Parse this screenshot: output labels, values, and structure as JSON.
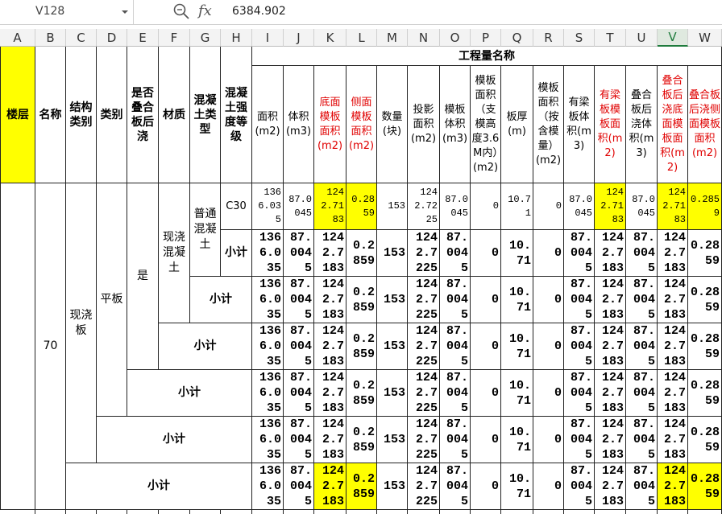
{
  "formula_bar": {
    "name_box": "V128",
    "fx": "fx",
    "formula": "6384.902"
  },
  "column_letters": [
    "A",
    "B",
    "C",
    "D",
    "E",
    "F",
    "G",
    "H",
    "I",
    "J",
    "K",
    "L",
    "M",
    "N",
    "O",
    "P",
    "Q",
    "R",
    "S",
    "T",
    "U",
    "V",
    "W"
  ],
  "table": {
    "header": {
      "left": [
        "楼层",
        "名称",
        "结构类别",
        "类别",
        "是否叠合板后浇",
        "材质",
        "混凝土类型",
        "混凝土强度等级"
      ],
      "title": "工程量名称",
      "measures": [
        "面积(m2)",
        "体积(m3)",
        "底面模板面积(m2)",
        "侧面模板面积(m2)",
        "数量(块)",
        "投影面积(m2)",
        "模板体积(m3)",
        "模板面积（支模高度3.6M内）(m2)",
        "板厚(m)",
        "模板面积（按含模量）(m2)",
        "有梁板体积(m3)",
        "有梁板模板面积(m2)",
        "叠合板后浇体积(m3)",
        "叠合板后浇底面模板面积(m2)",
        "叠合板后浇侧面模板面积(m2)"
      ]
    },
    "merged_labels": [
      "70",
      "现浇板",
      "平板",
      "是",
      "现浇混凝土",
      "普通混凝土",
      "C30"
    ],
    "subtotal_labels": [
      "小计",
      "小计",
      "小计",
      "小计",
      "小计",
      "小计"
    ],
    "rows": [
      [
        1366.035,
        87.0045,
        1242.7183,
        0.2859,
        153,
        1242.7225,
        87.0045,
        0,
        10.71,
        0,
        87.0045,
        1242.7183,
        87.0045,
        1242.7183,
        0.2859
      ],
      [
        1366.035,
        87.0045,
        1242.7183,
        0.2859,
        153,
        1242.7225,
        87.0045,
        0,
        10.71,
        0,
        87.0045,
        1242.7183,
        87.0045,
        1242.7183,
        0.2859
      ],
      [
        1366.035,
        87.0045,
        1242.7183,
        0.2859,
        153,
        1242.7225,
        87.0045,
        0,
        10.71,
        0,
        87.0045,
        1242.7183,
        87.0045,
        1242.7183,
        0.2859
      ],
      [
        1366.035,
        87.0045,
        1242.7183,
        0.2859,
        153,
        1242.7225,
        87.0045,
        0,
        10.71,
        0,
        87.0045,
        1242.7183,
        87.0045,
        1242.7183,
        0.2859
      ],
      [
        1366.035,
        87.0045,
        1242.7183,
        0.2859,
        153,
        1242.7225,
        87.0045,
        0,
        10.71,
        0,
        87.0045,
        1242.7183,
        87.0045,
        1242.7183,
        0.2859
      ],
      [
        1366.035,
        87.0045,
        1242.7183,
        0.2859,
        153,
        1242.7225,
        87.0045,
        0,
        10.71,
        0,
        87.0045,
        1242.7183,
        87.0045,
        1242.7183,
        0.2859
      ],
      [
        1366.035,
        87.0045,
        1242.7183,
        0.2859,
        153,
        1242.7225,
        87.0045,
        0,
        10.71,
        0,
        87.0045,
        1242.7183,
        87.0045,
        1242.7183,
        0.2859
      ]
    ]
  }
}
